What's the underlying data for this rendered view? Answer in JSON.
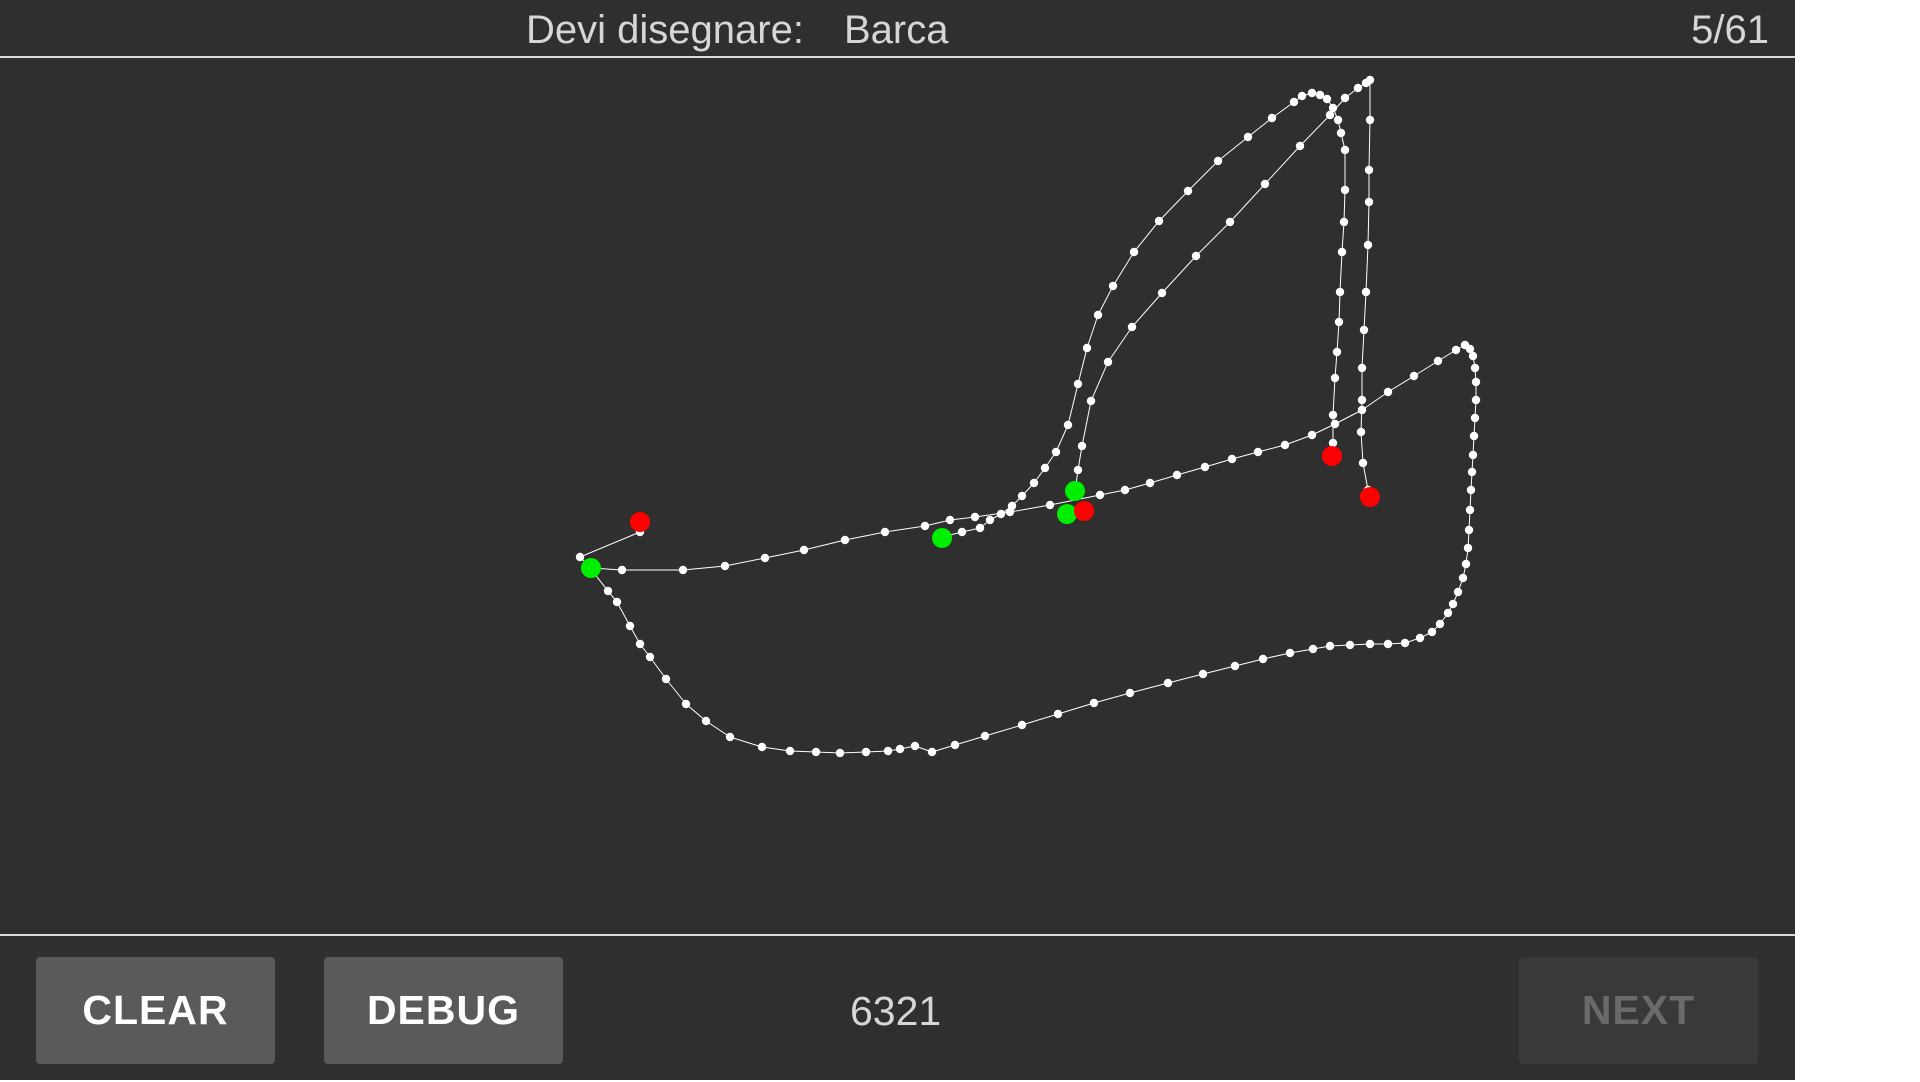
{
  "header": {
    "prompt_label": "Devi disegnare:",
    "prompt_word": "Barca",
    "progress": "5/61"
  },
  "footer": {
    "clear_label": "CLEAR",
    "debug_label": "DEBUG",
    "score": "6321",
    "next_label": "NEXT",
    "next_enabled": false
  },
  "drawing": {
    "stroke_color": "#ffffff",
    "point_color": "#ffffff",
    "start_marker_color": "#00ee00",
    "end_marker_color": "#ff0000"
  }
}
